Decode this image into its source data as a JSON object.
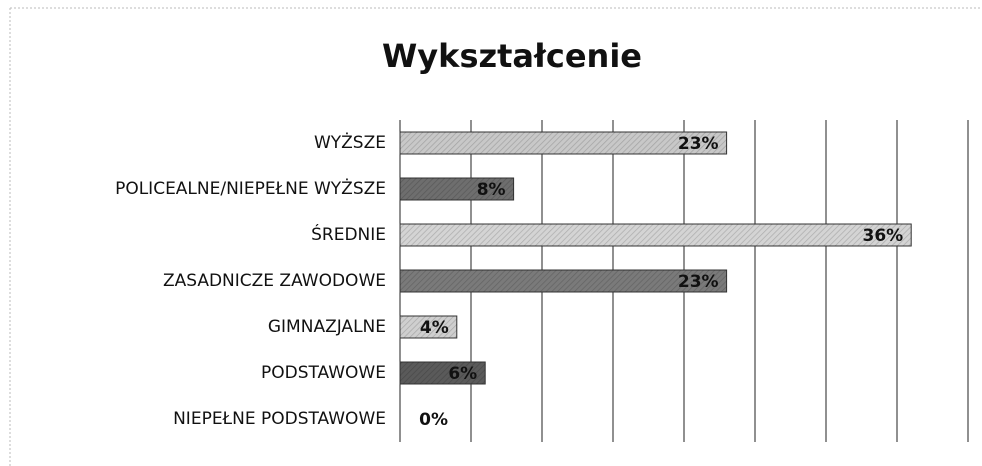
{
  "chart_data": {
    "type": "bar",
    "orientation": "horizontal",
    "title": "Wykształcenie",
    "categories": [
      "WYŻSZE",
      "POLICEALNE/NIEPEŁNE WYŻSZE",
      "ŚREDNIE",
      "ZASADNICZE ZAWODOWE",
      "GIMNAZJALNE",
      "PODSTAWOWE",
      "NIEPEŁNE PODSTAWOWE"
    ],
    "values": [
      23,
      8,
      36,
      23,
      4,
      6,
      0
    ],
    "value_labels": [
      "23%",
      "8%",
      "36%",
      "23%",
      "4%",
      "6%",
      "0%"
    ],
    "colors": [
      "#c8c8c8",
      "#6e6e6e",
      "#d4d4d4",
      "#7a7a7a",
      "#cfcfcf",
      "#5a5a5a",
      "#999999"
    ],
    "xlim": [
      0,
      40
    ],
    "xticks": [
      0,
      5,
      10,
      15,
      20,
      25,
      30,
      35,
      40
    ],
    "grid": true
  }
}
